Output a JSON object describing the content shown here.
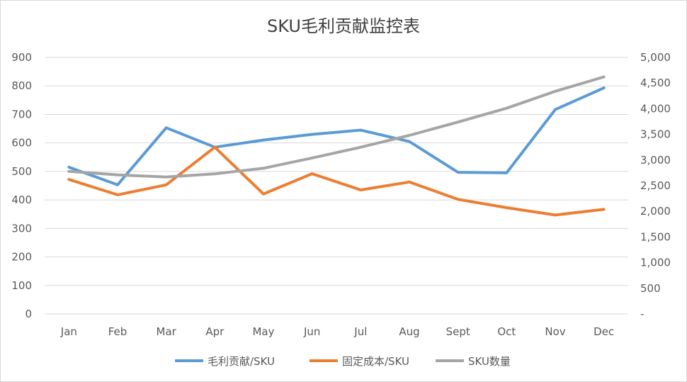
{
  "chart_data": {
    "type": "line",
    "title": "SKU毛利贡献监控表",
    "categories": [
      "Jan",
      "Feb",
      "Mar",
      "Apr",
      "May",
      "Jun",
      "Jul",
      "Aug",
      "Sept",
      "Oct",
      "Nov",
      "Dec"
    ],
    "y_left": {
      "ylim": [
        0,
        900
      ],
      "ticks": [
        "0",
        "100",
        "200",
        "300",
        "400",
        "500",
        "600",
        "700",
        "800",
        "900"
      ]
    },
    "y_right": {
      "ylim": [
        0,
        5000
      ],
      "ticks": [
        "-",
        "500",
        "1,000",
        "1,500",
        "2,000",
        "2,500",
        "3,000",
        "3,500",
        "4,000",
        "4,500",
        "5,000"
      ]
    },
    "grid": true,
    "legend_position": "bottom",
    "series": [
      {
        "name": "毛利贡献/SKU",
        "axis": "left",
        "color": "#5b9bd5",
        "values": [
          515,
          453,
          653,
          585,
          610,
          630,
          645,
          605,
          497,
          495,
          717,
          793
        ]
      },
      {
        "name": "固定成本/SKU",
        "axis": "left",
        "color": "#ed7d31",
        "values": [
          472,
          418,
          453,
          585,
          421,
          492,
          435,
          463,
          402,
          373,
          347,
          367
        ]
      },
      {
        "name": "SKU数量",
        "axis": "right",
        "color": "#a5a5a5",
        "values": [
          2780,
          2710,
          2670,
          2730,
          2840,
          3040,
          3250,
          3480,
          3740,
          4010,
          4340,
          4620
        ]
      }
    ]
  }
}
